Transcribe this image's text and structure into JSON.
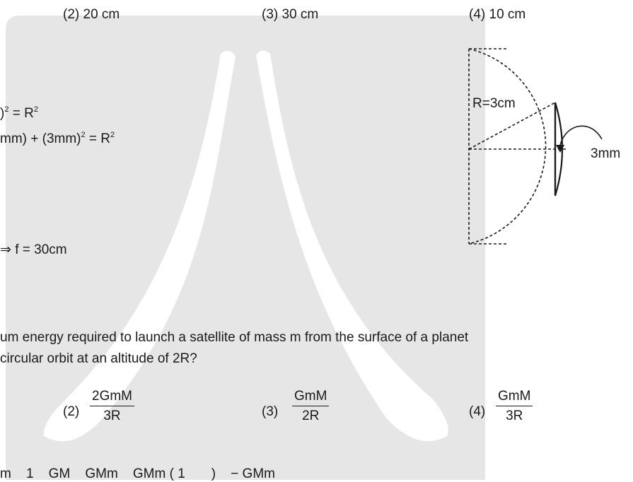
{
  "options_top": {
    "opt2": "(2) 20 cm",
    "opt3": "(3) 30 cm",
    "opt4": "(4) 10 cm"
  },
  "solution": {
    "line1": ")",
    "line1_sup": "2",
    "line1_rest": " = R",
    "line1_sup2": "2",
    "line2": "mm) + (3mm)",
    "line2_sup": "2",
    "line2_rest": " = R",
    "line2_sup2": "2",
    "line3": "⇒ f = 30cm"
  },
  "diagram": {
    "radius_label": "R=3cm",
    "width_label": "3mm"
  },
  "question": {
    "line1": "um energy required to launch a satellite of mass m from the surface of a planet",
    "line2": "circular orbit at an altitude of 2R?"
  },
  "options_bottom": {
    "opt2_label": "(2)",
    "opt2_num": "2GmM",
    "opt2_den": "3R",
    "opt3_label": "(3)",
    "opt3_num": "GmM",
    "opt3_den": "2R",
    "opt4_label": "(4)",
    "opt4_num": "GmM",
    "opt4_den": "3R"
  },
  "bottom_cut_line": "m    1    GM    GMm    GMm ( 1       )    − GMm",
  "colors": {
    "text": "#1a1a1a",
    "watermark": "#e6e6e6"
  }
}
